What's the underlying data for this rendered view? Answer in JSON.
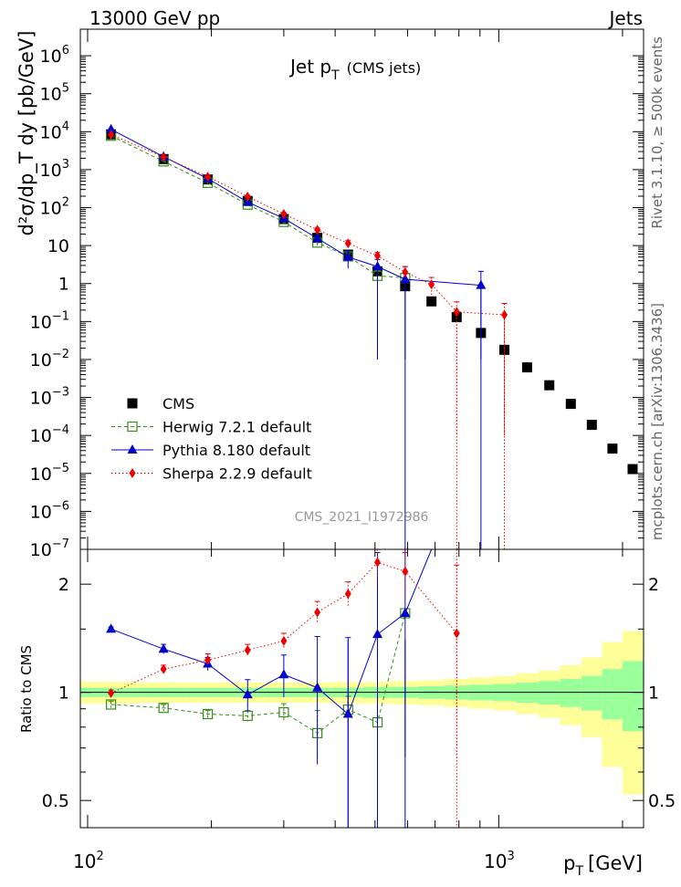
{
  "header": {
    "left": "13000 GeV pp",
    "right": "Jets"
  },
  "side_labels": {
    "rivet": "Rivet 3.1.10, ≥ 500k events",
    "mcplots": "mcplots.cern.ch [arXiv:1306.3436]"
  },
  "chart_data": [
    {
      "type": "scatter",
      "panel": "main",
      "title_main": "Jet p",
      "title_sub": "T",
      "title_suffix": "(CMS jets)",
      "analysis_label": "CMS_2021_I1972986",
      "xlabel": "p",
      "xlabel_sub": "T",
      "xlabel_unit": "[GeV]",
      "ylabel": "d²σ/dp_T dy [pb/GeV]",
      "xscale": "log",
      "yscale": "log",
      "xlim": [
        96,
        2250
      ],
      "ylim": [
        1e-07,
        5000000.0
      ],
      "x_tick_labels": [
        "10",
        "2",
        "10",
        "3"
      ],
      "y_tick_labels": [
        {
          "base": "10",
          "exp": "6"
        },
        {
          "base": "10",
          "exp": "5"
        },
        {
          "base": "10",
          "exp": "4"
        },
        {
          "base": "10",
          "exp": "3"
        },
        {
          "base": "10",
          "exp": "2"
        },
        {
          "base": "10",
          "exp": ""
        },
        {
          "base": "1",
          "exp": ""
        },
        {
          "base": "10",
          "exp": "−1"
        },
        {
          "base": "10",
          "exp": "−2"
        },
        {
          "base": "10",
          "exp": "−3"
        },
        {
          "base": "10",
          "exp": "−4"
        },
        {
          "base": "10",
          "exp": "−5"
        },
        {
          "base": "10",
          "exp": "−6"
        },
        {
          "base": "10",
          "exp": "−7"
        }
      ],
      "legend_position": "bottom-left",
      "series": [
        {
          "name": "CMS",
          "color": "#000000",
          "marker": "square",
          "x": [
            114,
            153,
            196,
            245,
            300,
            362,
            430,
            507,
            592,
            686,
            790,
            905,
            1032,
            1172,
            1327,
            1497,
            1684,
            1890,
            2116
          ],
          "y": [
            8500,
            1900,
            550,
            150,
            50,
            16,
            5.8,
            2.1,
            0.85,
            0.34,
            0.13,
            0.05,
            0.018,
            0.0062,
            0.0021,
            0.00068,
            0.00019,
            4.5e-05,
            1.3e-05
          ],
          "yerr_low": [
            0,
            0,
            0,
            0,
            0,
            0,
            0,
            0,
            0,
            0,
            0,
            0,
            0,
            0,
            0,
            0,
            0,
            0,
            0
          ],
          "yerr_high": [
            0,
            0,
            0,
            0,
            0,
            0,
            0,
            0,
            0,
            0,
            0,
            0,
            0,
            0,
            0,
            0,
            0,
            0,
            0
          ]
        },
        {
          "name": "Herwig 7.2.1 default",
          "color": "#3a8a1e",
          "marker": "open-square",
          "line": "dashed",
          "x": [
            114,
            153,
            196,
            245,
            300,
            362,
            430,
            507,
            592
          ],
          "y": [
            7800,
            1650,
            450,
            120,
            42,
            12,
            5.2,
            1.6,
            1.4
          ],
          "yerr_low": [
            300,
            80,
            25,
            10,
            5,
            2,
            1,
            0.6,
            0
          ],
          "yerr_high": [
            300,
            80,
            25,
            10,
            5,
            2,
            1,
            0.6,
            0
          ]
        },
        {
          "name": "Pythia 8.180 default",
          "color": "#0000cc",
          "marker": "triangle",
          "line": "solid",
          "x": [
            114,
            153,
            196,
            245,
            300,
            362,
            430,
            507,
            592,
            905
          ],
          "y": [
            11500,
            2200,
            580,
            140,
            52,
            15.5,
            5,
            2.8,
            1.3,
            0.9
          ],
          "yerr_low": [
            400,
            100,
            30,
            15,
            6,
            3,
            2.5,
            2.79,
            1.29,
            0.89
          ],
          "yerr_high": [
            400,
            100,
            30,
            15,
            6,
            3,
            2.5,
            1.5,
            1.5,
            1.2
          ]
        },
        {
          "name": "Sherpa 2.2.9 default",
          "color": "#ee0000",
          "marker": "diamond",
          "line": "dotted",
          "x": [
            114,
            153,
            196,
            245,
            300,
            362,
            430,
            507,
            592,
            686,
            790,
            1032
          ],
          "y": [
            8400,
            2150,
            650,
            195,
            68,
            26,
            11.5,
            5.4,
            2,
            0.95,
            0.18,
            0.15
          ],
          "yerr_low": [
            300,
            80,
            30,
            12,
            5,
            3,
            2,
            1.2,
            0.8,
            0.5,
            0.1799,
            0.1499
          ],
          "yerr_high": [
            300,
            80,
            30,
            12,
            5,
            3,
            2,
            1.2,
            0.8,
            0.5,
            0.15,
            0.15
          ]
        }
      ]
    },
    {
      "type": "scatter",
      "panel": "ratio",
      "ylabel": "Ratio to CMS",
      "xscale": "log",
      "yscale": "log",
      "xlim": [
        96,
        2250
      ],
      "ylim": [
        0.42,
        2.5
      ],
      "y_tick_labels": [
        "2",
        "1",
        "0.5"
      ],
      "reference_line": 1,
      "uncertainty_bands": {
        "bin_edges": [
          96,
          133,
          173,
          218,
          270,
          330,
          395,
          468,
          548,
          638,
          737,
          846,
          967,
          1101,
          1248,
          1410,
          1588,
          1784,
          2000,
          2250
        ],
        "inner_half_width": [
          0.03,
          0.03,
          0.03,
          0.03,
          0.03,
          0.03,
          0.03,
          0.035,
          0.035,
          0.04,
          0.045,
          0.05,
          0.055,
          0.065,
          0.075,
          0.09,
          0.11,
          0.16,
          0.22
        ],
        "outer_half_width": [
          0.07,
          0.065,
          0.065,
          0.065,
          0.065,
          0.065,
          0.07,
          0.07,
          0.075,
          0.08,
          0.09,
          0.1,
          0.11,
          0.13,
          0.15,
          0.19,
          0.25,
          0.38,
          0.48
        ],
        "inner_color": "#99ff99",
        "outer_color": "#ffff99"
      },
      "series": [
        {
          "name": "Herwig 7.2.1 default",
          "color": "#3a8a1e",
          "x": [
            114,
            153,
            196,
            245,
            300,
            362,
            430,
            507,
            592
          ],
          "y": [
            0.925,
            0.905,
            0.87,
            0.86,
            0.88,
            0.77,
            0.895,
            0.825,
            1.66
          ],
          "yerr": [
            0.02,
            0.02,
            0.02,
            0.03,
            0.05,
            0.12,
            0.08,
            0.0,
            0.0
          ]
        },
        {
          "name": "Pythia 8.180 default",
          "color": "#0000cc",
          "x": [
            114,
            153,
            196,
            245,
            300,
            362,
            430,
            507,
            592,
            686
          ],
          "y": [
            1.5,
            1.32,
            1.2,
            0.985,
            1.12,
            1.03,
            0.87,
            1.45,
            1.66,
            2.6
          ],
          "yerr": [
            0.02,
            0.04,
            0.05,
            0.1,
            0.15,
            0.4,
            0.55,
            1.0,
            1.0,
            0.0
          ]
        },
        {
          "name": "Sherpa 2.2.9 default",
          "color": "#ee0000",
          "x": [
            114,
            153,
            196,
            245,
            300,
            362,
            430,
            507,
            592,
            790
          ],
          "y": [
            0.995,
            1.16,
            1.23,
            1.31,
            1.39,
            1.67,
            1.88,
            2.3,
            2.17,
            1.46
          ],
          "yerr": [
            0.02,
            0.03,
            0.05,
            0.05,
            0.07,
            0.12,
            0.15,
            0.22,
            0.28,
            0.8
          ]
        }
      ]
    }
  ]
}
